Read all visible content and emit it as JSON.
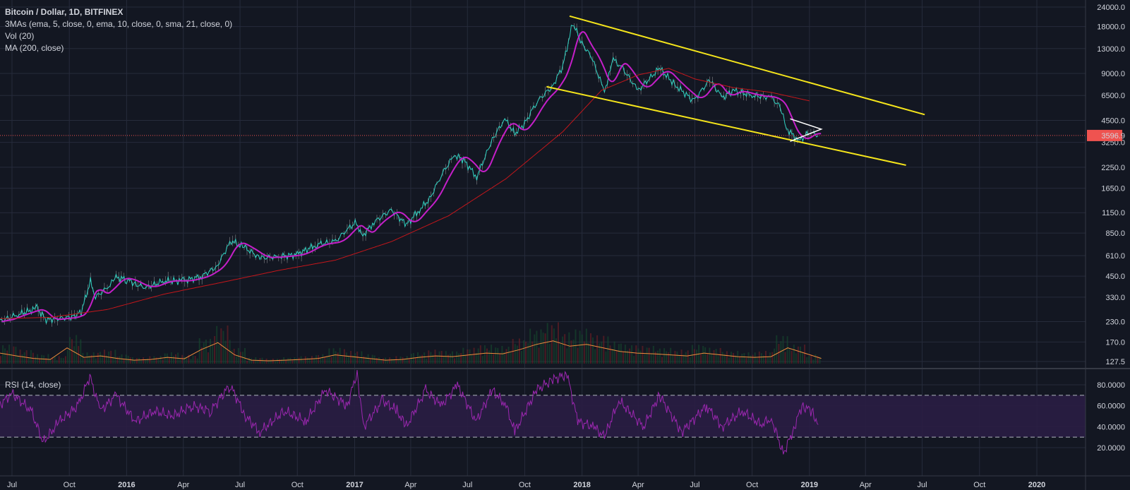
{
  "header": {
    "title": "Bitcoin / Dollar, 1D, BITFINEX",
    "studies": [
      "3MAs (ema, 5, close, 0, ema, 10, close, 0, sma, 21, close, 0)",
      "Vol (20)",
      "MA (200, close)"
    ],
    "rsi_label": "RSI (14, close)"
  },
  "colors": {
    "background": "#131722",
    "grid": "#262b3b",
    "price_line": "#8fd7f0",
    "ema_fast": "#2fd3c2",
    "sma21": "#c51fc9",
    "ma200": "#c3171b",
    "channel": "#f5e51b",
    "triangle": "#ffffff",
    "volume_ma": "#f08c3c",
    "rsi_line": "#9c27b0",
    "rsi_band": "#2a1d44",
    "last_price_badge": "#ef5350"
  },
  "chart_data": [
    {
      "type": "line",
      "title": "Bitcoin / Dollar, 1D, BITFINEX",
      "y_scale": "log",
      "y_ticks": [
        24000,
        18000,
        13000,
        9000,
        6500,
        4500,
        3250,
        2250,
        1650,
        1150,
        850,
        610,
        450,
        330,
        230,
        170,
        127.5
      ],
      "y_tick_labels": [
        "24000.0",
        "18000.0",
        "13000.0",
        "9000.0",
        "6500.0",
        "4500.0",
        "3250.0",
        "2250.0",
        "1650.0",
        "1150.0",
        "850.0",
        "610.0",
        "450.0",
        "330.0",
        "230.0",
        "170.0",
        "127.5"
      ],
      "last_price": 3596.9,
      "last_price_label": "3596.9",
      "x_ticks": [
        "Jul",
        "Oct",
        "2016",
        "Apr",
        "Jul",
        "Oct",
        "2017",
        "Apr",
        "Jul",
        "Oct",
        "2018",
        "Apr",
        "Jul",
        "Oct",
        "2019",
        "Apr",
        "Jul",
        "Oct",
        "2020"
      ],
      "x_tick_dates": [
        "2015-07-01",
        "2015-10-01",
        "2016-01-01",
        "2016-04-01",
        "2016-07-01",
        "2016-10-01",
        "2017-01-01",
        "2017-04-01",
        "2017-07-01",
        "2017-10-01",
        "2018-01-01",
        "2018-04-01",
        "2018-07-01",
        "2018-10-01",
        "2019-01-01",
        "2019-04-01",
        "2019-07-01",
        "2019-10-01",
        "2020-01-01"
      ],
      "series": [
        {
          "name": "close",
          "x": [
            "2015-06-10",
            "2015-07-10",
            "2015-08-10",
            "2015-08-25",
            "2015-09-10",
            "2015-10-05",
            "2015-10-20",
            "2015-11-04",
            "2015-11-12",
            "2015-12-01",
            "2015-12-15",
            "2016-01-01",
            "2016-01-15",
            "2016-02-01",
            "2016-03-01",
            "2016-04-01",
            "2016-05-01",
            "2016-05-25",
            "2016-06-10",
            "2016-06-17",
            "2016-07-10",
            "2016-08-02",
            "2016-09-01",
            "2016-10-01",
            "2016-11-01",
            "2016-12-01",
            "2016-12-20",
            "2017-01-04",
            "2017-01-12",
            "2017-02-01",
            "2017-03-01",
            "2017-03-25",
            "2017-04-15",
            "2017-05-01",
            "2017-05-20",
            "2017-06-10",
            "2017-06-25",
            "2017-07-16",
            "2017-08-10",
            "2017-08-30",
            "2017-09-15",
            "2017-10-01",
            "2017-10-20",
            "2017-11-15",
            "2017-12-01",
            "2017-12-17",
            "2018-01-01",
            "2018-01-16",
            "2018-02-06",
            "2018-02-20",
            "2018-03-01",
            "2018-04-01",
            "2018-05-05",
            "2018-06-01",
            "2018-06-29",
            "2018-07-25",
            "2018-08-14",
            "2018-09-01",
            "2018-10-01",
            "2018-11-01",
            "2018-11-15",
            "2018-11-25",
            "2018-12-15",
            "2019-01-01",
            "2019-01-15"
          ],
          "y": [
            230,
            255,
            280,
            235,
            240,
            245,
            265,
            420,
            330,
            380,
            440,
            430,
            400,
            380,
            420,
            420,
            450,
            520,
            680,
            760,
            680,
            590,
            600,
            620,
            720,
            750,
            900,
            1000,
            800,
            1000,
            1200,
            960,
            1200,
            1400,
            2000,
            2700,
            2500,
            1950,
            3400,
            4600,
            3700,
            4300,
            5900,
            7500,
            10000,
            19000,
            14000,
            11500,
            6900,
            11000,
            10500,
            7000,
            9700,
            7500,
            6000,
            8200,
            6300,
            7000,
            6500,
            6300,
            5500,
            4000,
            3300,
            3800,
            3600
          ]
        },
        {
          "name": "MA (200, close)",
          "x": [
            "2015-06-10",
            "2015-09-01",
            "2015-12-01",
            "2016-03-01",
            "2016-06-01",
            "2016-09-01",
            "2016-12-01",
            "2017-03-01",
            "2017-06-01",
            "2017-09-01",
            "2017-12-01",
            "2018-02-01",
            "2018-04-01",
            "2018-05-20",
            "2018-07-01",
            "2018-09-01",
            "2018-11-01",
            "2019-01-01"
          ],
          "y": [
            240,
            245,
            275,
            345,
            410,
            490,
            570,
            750,
            1100,
            1900,
            3800,
            7000,
            8800,
            9700,
            8300,
            7300,
            6800,
            6000
          ]
        }
      ],
      "channel_lines": [
        {
          "x": [
            "2017-12-12",
            "2019-07-05"
          ],
          "y": [
            21000,
            4900
          ]
        },
        {
          "x": [
            "2017-11-05",
            "2019-06-05"
          ],
          "y": [
            7400,
            2320
          ]
        }
      ],
      "triangle": {
        "x": [
          "2018-12-01",
          "2019-01-20",
          "2018-12-01"
        ],
        "y": [
          4600,
          3950,
          3300
        ]
      },
      "volume_ma": [
        0.3,
        0.22,
        0.15,
        0.12,
        0.45,
        0.18,
        0.22,
        0.15,
        0.1,
        0.12,
        0.18,
        0.14,
        0.4,
        0.6,
        0.25,
        0.1,
        0.08,
        0.1,
        0.12,
        0.15,
        0.25,
        0.2,
        0.15,
        0.1,
        0.12,
        0.18,
        0.22,
        0.2,
        0.25,
        0.3,
        0.28,
        0.4,
        0.55,
        0.65,
        0.5,
        0.55,
        0.45,
        0.35,
        0.3,
        0.28,
        0.25,
        0.22,
        0.3,
        0.25,
        0.2,
        0.18,
        0.2,
        0.45,
        0.3,
        0.15
      ]
    },
    {
      "type": "line",
      "title": "RSI (14, close)",
      "y_ticks": [
        80,
        60,
        40,
        20
      ],
      "y_tick_labels": [
        "80.0000",
        "60.0000",
        "40.0000",
        "20.0000"
      ],
      "upper_band": 70,
      "lower_band": 30,
      "series": [
        {
          "name": "RSI",
          "x": [
            "2015-06-10",
            "2015-07-01",
            "2015-08-01",
            "2015-08-20",
            "2015-09-15",
            "2015-10-15",
            "2015-11-03",
            "2015-11-20",
            "2015-12-15",
            "2016-01-15",
            "2016-02-15",
            "2016-03-15",
            "2016-04-15",
            "2016-05-15",
            "2016-06-15",
            "2016-07-10",
            "2016-08-02",
            "2016-09-10",
            "2016-10-15",
            "2016-11-15",
            "2016-12-20",
            "2017-01-05",
            "2017-01-15",
            "2017-02-15",
            "2017-03-10",
            "2017-03-25",
            "2017-04-25",
            "2017-05-20",
            "2017-06-15",
            "2017-07-15",
            "2017-08-10",
            "2017-09-01",
            "2017-09-15",
            "2017-10-20",
            "2017-11-15",
            "2017-12-08",
            "2017-12-25",
            "2018-01-20",
            "2018-02-06",
            "2018-03-01",
            "2018-04-10",
            "2018-05-05",
            "2018-06-10",
            "2018-07-20",
            "2018-08-14",
            "2018-09-15",
            "2018-10-15",
            "2018-11-01",
            "2018-11-20",
            "2018-12-05",
            "2018-12-20",
            "2019-01-05",
            "2019-01-15"
          ],
          "y": [
            60,
            72,
            55,
            25,
            45,
            60,
            88,
            55,
            70,
            45,
            55,
            50,
            60,
            55,
            80,
            50,
            35,
            55,
            45,
            75,
            60,
            92,
            40,
            65,
            55,
            40,
            75,
            60,
            80,
            45,
            75,
            60,
            35,
            75,
            85,
            90,
            45,
            40,
            30,
            65,
            40,
            70,
            35,
            60,
            40,
            55,
            42,
            48,
            14,
            35,
            60,
            55,
            42
          ]
        }
      ]
    }
  ]
}
